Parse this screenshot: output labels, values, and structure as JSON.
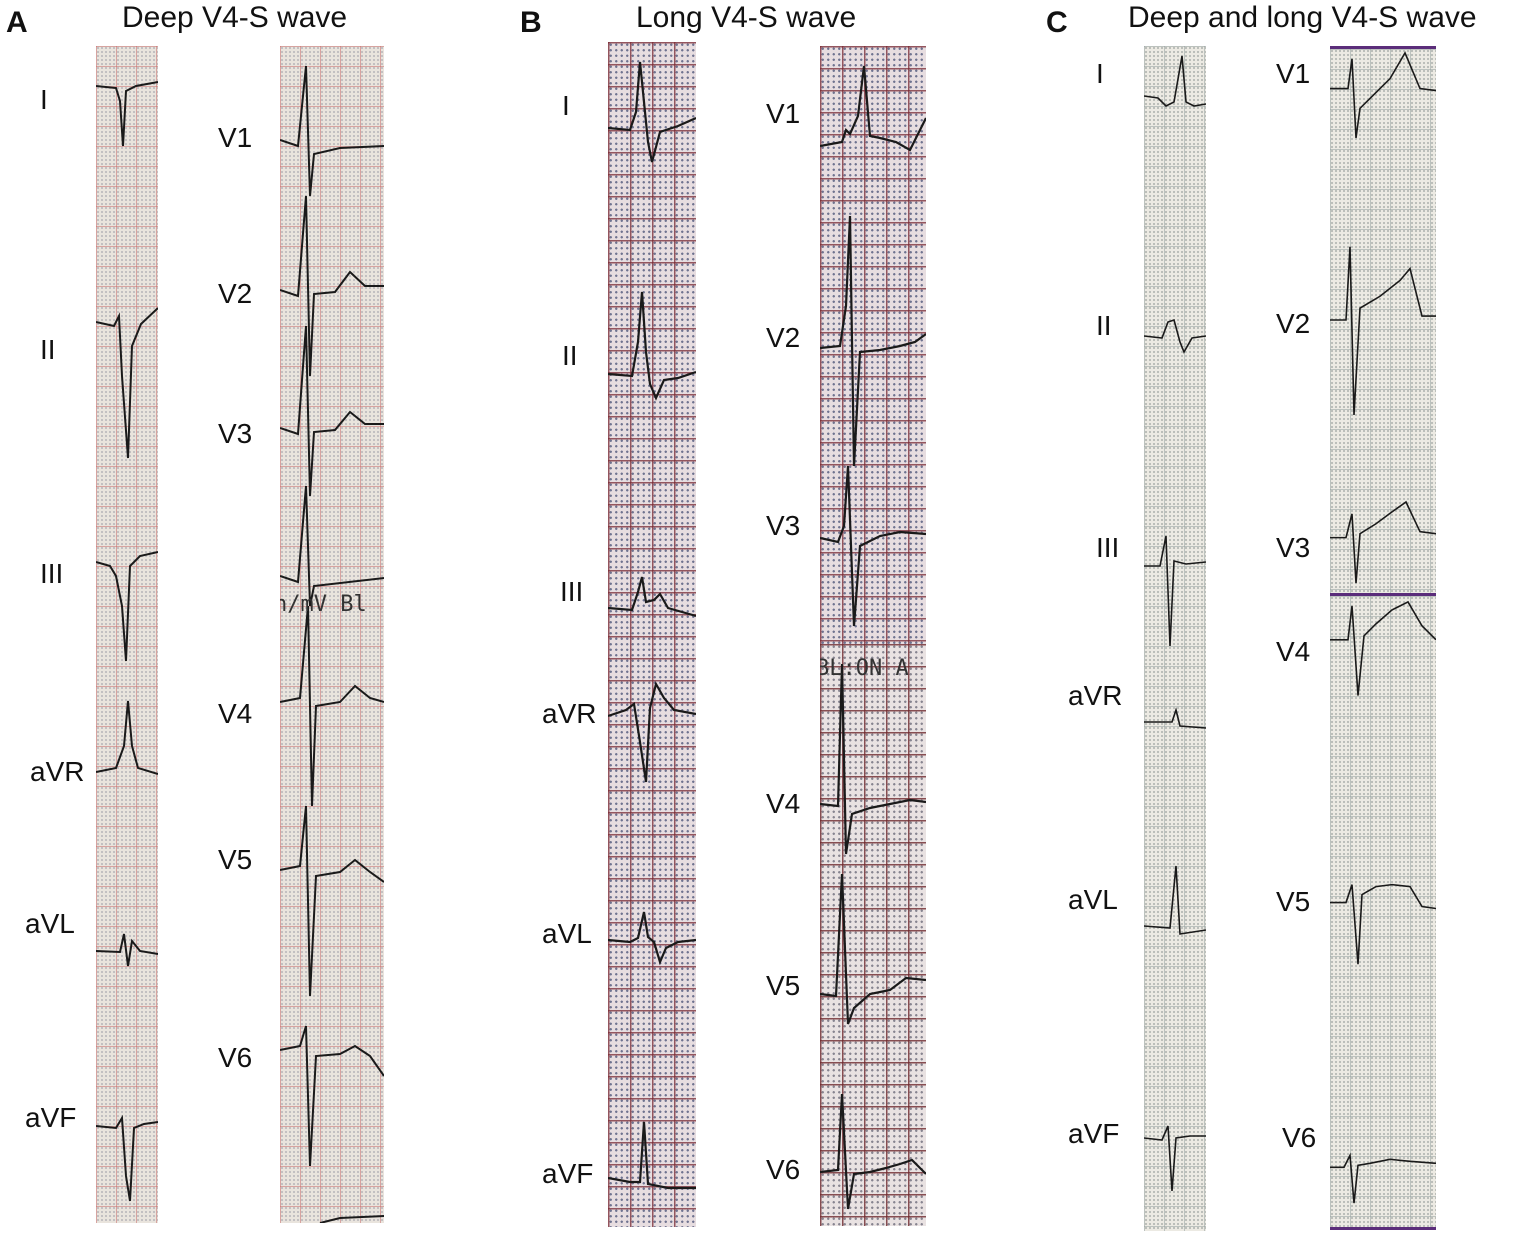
{
  "panels": [
    {
      "letter": "A",
      "title": "Deep V4-S wave",
      "strip_text": "n/mV  Bl"
    },
    {
      "letter": "B",
      "title": "Long V4-S wave",
      "strip_text": "BL:ON  A"
    },
    {
      "letter": "C",
      "title": "Deep and long V4-S wave"
    }
  ],
  "leads": {
    "limb": [
      "I",
      "II",
      "III",
      "aVR",
      "aVL",
      "aVF"
    ],
    "chest": [
      "V1",
      "V2",
      "V3",
      "V4",
      "V5",
      "V6"
    ]
  },
  "colors": {
    "trace": "#1a1a1a",
    "panel_b_grid": "#7a2a33",
    "panel_c_border": "#5b2d7a"
  }
}
